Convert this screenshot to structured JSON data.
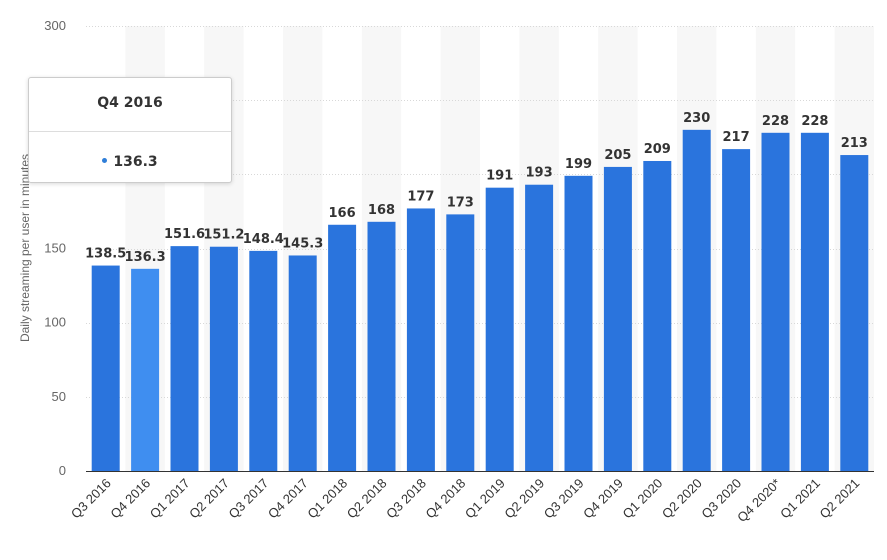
{
  "chart_data": {
    "type": "bar",
    "categories": [
      "Q3 2016",
      "Q4 2016",
      "Q1 2017",
      "Q2 2017",
      "Q3 2017",
      "Q4 2017",
      "Q1 2018",
      "Q2 2018",
      "Q3 2018",
      "Q4 2018",
      "Q1 2019",
      "Q2 2019",
      "Q3 2019",
      "Q4 2019",
      "Q1 2020",
      "Q2 2020",
      "Q3 2020",
      "Q4 2020*",
      "Q1 2021",
      "Q2 2021"
    ],
    "values": [
      138.5,
      136.3,
      151.6,
      151.2,
      148.4,
      145.3,
      166,
      168,
      177,
      173,
      191,
      193,
      199,
      205,
      209,
      230,
      217,
      228,
      228,
      213
    ],
    "data_labels": [
      "138.5",
      "136.3",
      "151.6",
      "151.2",
      "148.4",
      "145.3",
      "166",
      "168",
      "177",
      "173",
      "191",
      "193",
      "199",
      "205",
      "209",
      "230",
      "217",
      "228",
      "228",
      "213"
    ],
    "ylabel": "Daily streaming per user in minutes",
    "ylim": [
      0,
      300
    ],
    "yticks": [
      0,
      50,
      100,
      150,
      300
    ],
    "ytick_labels": [
      "0",
      "50",
      "100",
      "150",
      "300"
    ],
    "grid": true,
    "highlighted_index": 1,
    "colors": {
      "bar": "#2a74dd",
      "bar_highlight": "#3f8ef0",
      "alt_band": "#f7f7f7",
      "grid": "#d8d8d8",
      "axis": "#333333"
    }
  },
  "tooltip": {
    "title": "Q4 2016",
    "value": "136.3"
  }
}
